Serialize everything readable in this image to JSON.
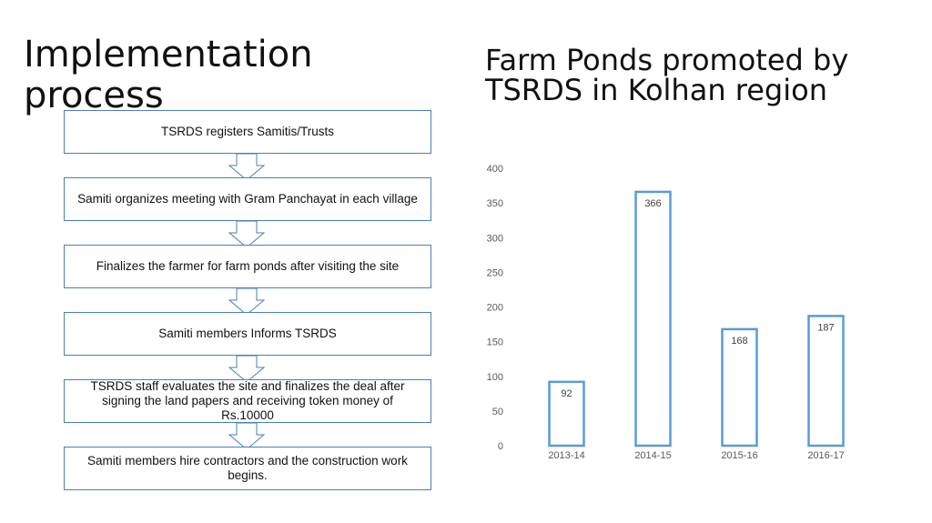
{
  "left_title": "Implementation process",
  "right_title": "Farm Ponds promoted by TSRDS in Kolhan region",
  "steps": [
    "TSRDS registers Samitis/Trusts",
    "Samiti organizes meeting with Gram Panchayat in each village",
    "Finalizes the farmer for farm ponds after visiting the site",
    "Samiti members Informs TSRDS",
    "TSRDS staff evaluates the site and finalizes the deal after signing the land papers and receiving token money of Rs.10000",
    "Samiti members hire contractors and the construction work begins."
  ],
  "colors": {
    "box_border": "#4a7ebb",
    "bar_outline": "#5b9bd5"
  },
  "chart_data": {
    "type": "bar",
    "title": "",
    "categories": [
      "2013-14",
      "2014-15",
      "2015-16",
      "2016-17"
    ],
    "values": [
      92,
      366,
      168,
      187
    ],
    "data_labels": [
      "92",
      "366",
      "168",
      "187"
    ],
    "yticks": [
      0,
      50,
      100,
      150,
      200,
      250,
      300,
      350,
      400
    ],
    "ylim": [
      0,
      400
    ],
    "grid": false,
    "legend": "none",
    "xlabel": "",
    "ylabel": ""
  }
}
